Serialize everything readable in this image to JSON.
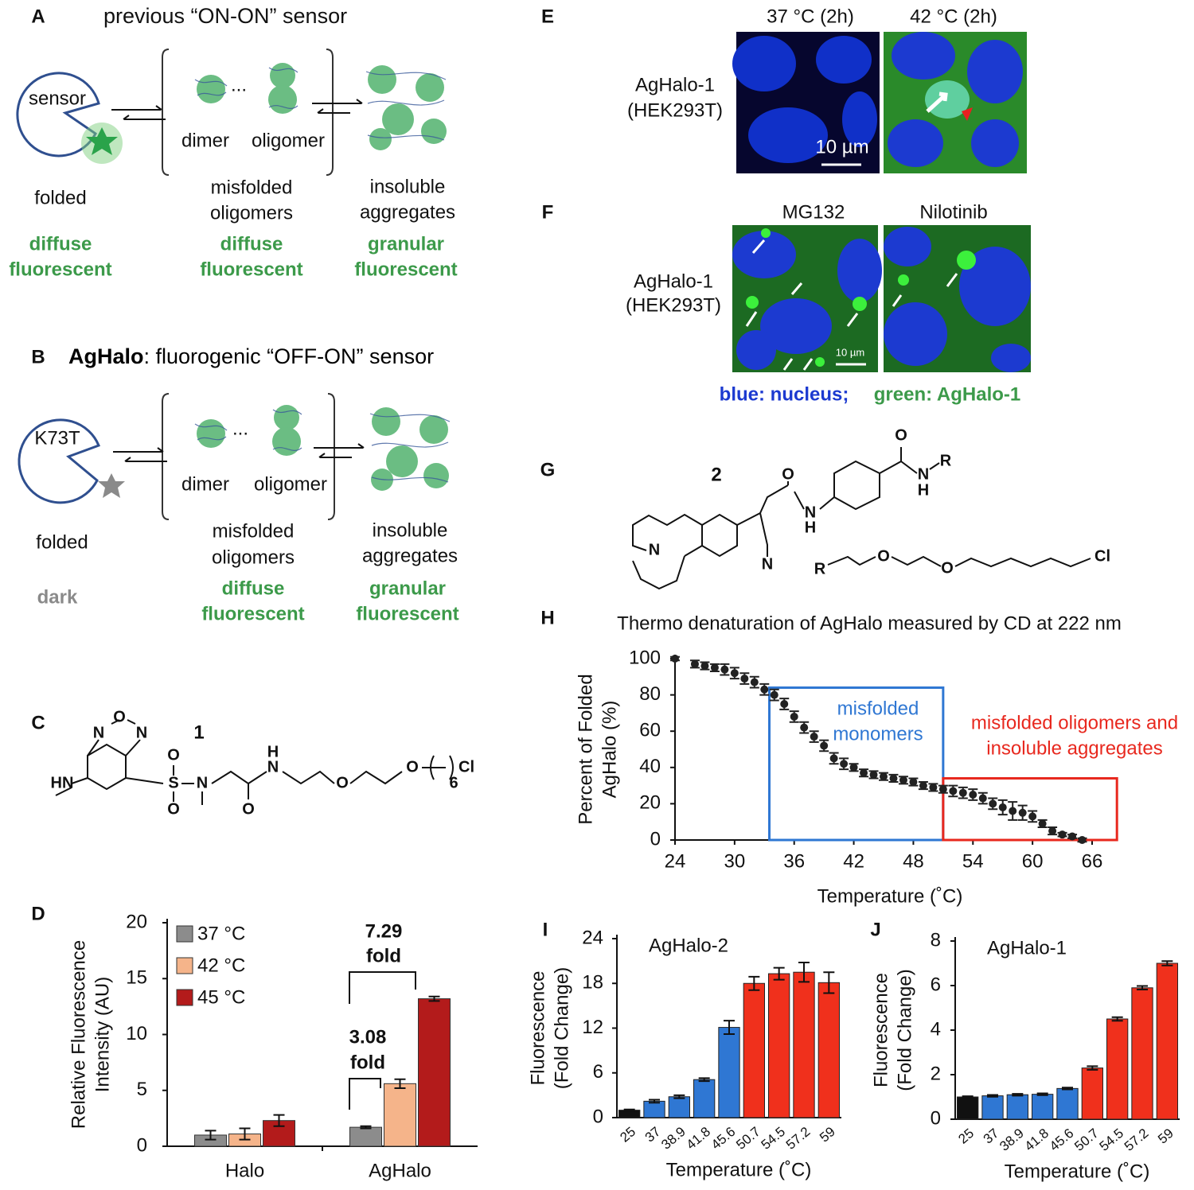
{
  "panels": {
    "A": {
      "letter": "A",
      "title": "previous “ON-ON” sensor",
      "labels": [
        "sensor",
        "...",
        "dimer",
        "oligomer",
        "folded",
        "misfolded",
        "oligomers",
        "insoluble",
        "aggregates"
      ],
      "signals": [
        "diffuse",
        "fluorescent",
        "diffuse",
        "fluorescent",
        "granular",
        "fluorescent"
      ]
    },
    "B": {
      "letter": "B",
      "title_bold": "AgHalo",
      "title": ": fluorogenic “OFF-ON” sensor",
      "labels": [
        "K73T",
        "...",
        "dimer",
        "oligomer",
        "folded",
        "misfolded",
        "oligomers",
        "insoluble",
        "aggregates"
      ],
      "dark": "dark",
      "signals": [
        "diffuse",
        "fluorescent",
        "granular",
        "fluorescent"
      ]
    },
    "C": {
      "letter": "C",
      "atoms": [
        "N",
        "O",
        "N",
        "1",
        "HN",
        "S",
        "O",
        "O",
        "N",
        "O",
        "H",
        "N",
        "O",
        "O",
        "6",
        "Cl"
      ]
    },
    "D": {
      "letter": "D"
    },
    "E": {
      "letter": "E",
      "columns": [
        "37 °C (2h)",
        "42 °C (2h)"
      ],
      "row_label": [
        "AgHalo-1",
        "(HEK293T)"
      ],
      "scale": "10 µm"
    },
    "F": {
      "letter": "F",
      "columns": [
        "MG132",
        "Nilotinib"
      ],
      "row_label": [
        "AgHalo-1",
        "(HEK293T)"
      ],
      "scale": "10 µm",
      "caption": [
        "blue: nucleus;",
        "green: AgHalo-1"
      ]
    },
    "G": {
      "letter": "G",
      "atoms": [
        "2",
        "O",
        "N",
        "H",
        "N",
        "N",
        "O",
        "N",
        "H",
        "R",
        "R",
        "O",
        "O",
        "Cl"
      ]
    },
    "H": {
      "letter": "H"
    },
    "I": {
      "letter": "I"
    },
    "J": {
      "letter": "J"
    }
  },
  "chart_data": [
    {
      "type": "bar",
      "categories": [
        "Halo",
        "AgHalo"
      ],
      "ylabel": [
        "Relative Fluorescence",
        "Intensity (AU)"
      ],
      "ylim": [
        0,
        20
      ],
      "yticks": [
        0,
        5,
        10,
        15,
        20
      ],
      "series": [
        {
          "name": "37 °C",
          "color": "#8c8c8c",
          "values": [
            1.0,
            1.7
          ],
          "errors": [
            0.4,
            0.1
          ]
        },
        {
          "name": "42 °C",
          "color": "#f5b48a",
          "values": [
            1.1,
            5.6
          ],
          "errors": [
            0.5,
            0.4
          ]
        },
        {
          "name": "45 °C",
          "color": "#b31b1b",
          "values": [
            2.3,
            13.2
          ],
          "errors": [
            0.5,
            0.2
          ]
        }
      ],
      "annotations": [
        {
          "lines": [
            "7.29",
            "fold"
          ]
        },
        {
          "lines": [
            "3.08",
            "fold"
          ]
        }
      ]
    },
    {
      "type": "scatter",
      "title": "Thermo denaturation of AgHalo measured by CD at 222 nm",
      "xlabel": "Temperature (˚C)",
      "ylabel": [
        "Percent of Folded",
        "AgHalo (%)"
      ],
      "xlim": [
        24,
        66
      ],
      "xticks": [
        24,
        30,
        36,
        42,
        48,
        54,
        60,
        66
      ],
      "ylim": [
        0,
        100
      ],
      "yticks": [
        0,
        20,
        40,
        60,
        80,
        100
      ],
      "color": "#222222",
      "x": [
        24,
        26,
        27,
        28,
        29,
        30,
        31,
        32,
        33,
        34,
        35,
        36,
        37,
        38,
        39,
        40,
        41,
        42,
        43,
        44,
        45,
        46,
        47,
        48,
        49,
        50,
        51,
        52,
        53,
        54,
        55,
        56,
        57,
        58,
        59,
        60,
        61,
        62,
        63,
        64,
        65
      ],
      "y": [
        100,
        97,
        96,
        95,
        94,
        92,
        89,
        87,
        83,
        80,
        75,
        68,
        62,
        57,
        52,
        45,
        42,
        40,
        37,
        36,
        35,
        34,
        33,
        32,
        30,
        29,
        28,
        27,
        26,
        25,
        23,
        20,
        18,
        16,
        15,
        13,
        9,
        5,
        3,
        2,
        0
      ],
      "errors": [
        1,
        2,
        2,
        2,
        3,
        3,
        3,
        3,
        3,
        3,
        3,
        3,
        3,
        3,
        3,
        3,
        3,
        2,
        2,
        2,
        2,
        2,
        2,
        2,
        2,
        2,
        2,
        3,
        3,
        3,
        3,
        3,
        4,
        5,
        4,
        3,
        2,
        2,
        1,
        1,
        1
      ],
      "regions": [
        {
          "lines": [
            "misfolded",
            "monomers"
          ],
          "color": "#2f77d3",
          "x": [
            33.5,
            51
          ],
          "y": [
            0,
            84
          ]
        },
        {
          "lines": [
            "misfolded oligomers and",
            "insoluble aggregates"
          ],
          "color": "#e8281e",
          "x": [
            51,
            68.5
          ],
          "y": [
            0,
            34
          ]
        }
      ]
    },
    {
      "type": "bar",
      "title": "AgHalo-2",
      "xlabel": "Temperature (˚C)",
      "ylabel": [
        "Fluorescence",
        "(Fold Change)"
      ],
      "categories": [
        "25",
        "37",
        "38.9",
        "41.8",
        "45.6",
        "50.7",
        "54.5",
        "57.2",
        "59"
      ],
      "values": [
        1,
        2.2,
        2.8,
        5.1,
        12.1,
        18,
        19.3,
        19.5,
        18.1
      ],
      "errors": [
        0.1,
        0.2,
        0.2,
        0.2,
        0.9,
        0.9,
        0.8,
        1.3,
        1.4
      ],
      "colors": [
        "#111111",
        "#2f77d3",
        "#2f77d3",
        "#2f77d3",
        "#2f77d3",
        "#f0301c",
        "#f0301c",
        "#f0301c",
        "#f0301c"
      ],
      "ylim": [
        0,
        24
      ],
      "yticks": [
        0,
        6,
        12,
        18,
        24
      ]
    },
    {
      "type": "bar",
      "title": "AgHalo-1",
      "xlabel": "Temperature (˚C)",
      "ylabel": [
        "Fluorescence",
        "(Fold Change)"
      ],
      "categories": [
        "25",
        "37",
        "38.9",
        "41.8",
        "45.6",
        "50.7",
        "54.5",
        "57.2",
        "59"
      ],
      "values": [
        1,
        1.05,
        1.1,
        1.12,
        1.38,
        2.3,
        4.5,
        5.9,
        7.0
      ],
      "errors": [
        0.03,
        0.04,
        0.04,
        0.04,
        0.04,
        0.08,
        0.08,
        0.08,
        0.1
      ],
      "colors": [
        "#111111",
        "#2f77d3",
        "#2f77d3",
        "#2f77d3",
        "#2f77d3",
        "#f0301c",
        "#f0301c",
        "#f0301c",
        "#f0301c"
      ],
      "ylim": [
        0,
        8
      ],
      "yticks": [
        0,
        2,
        4,
        6,
        8
      ]
    }
  ]
}
